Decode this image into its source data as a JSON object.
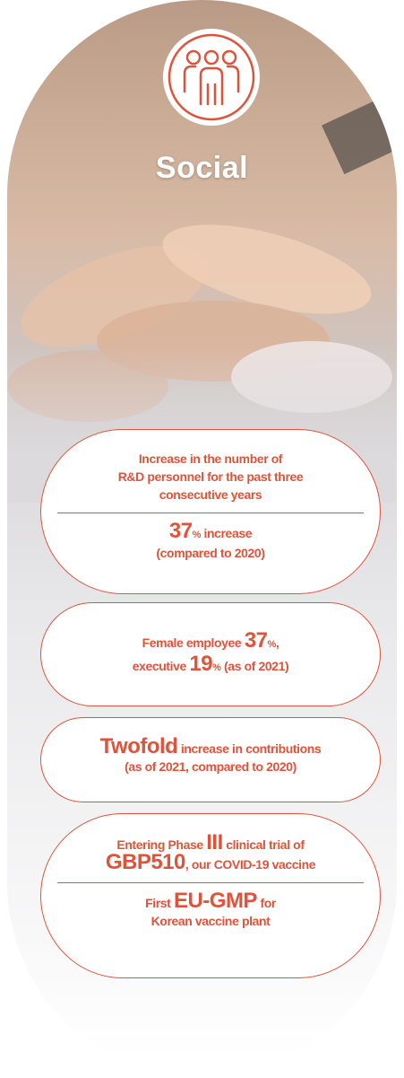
{
  "header": {
    "title": "Social"
  },
  "cards": [
    {
      "heading": [
        "Increase in the number of",
        "R&D personnel for the past three",
        "consecutive years"
      ],
      "figure": {
        "value": "37",
        "unit": "%",
        "text": "increase",
        "note": "(compared to 2020)"
      }
    },
    {
      "line1": {
        "text": "Female employee",
        "value": "37",
        "unit": "%",
        "tail": ","
      },
      "line2": {
        "text": "executive",
        "value": "19",
        "unit": "%",
        "tail": "(as of 2021)"
      }
    },
    {
      "line1": {
        "value": "Twofold",
        "text": "increase in contributions"
      },
      "line2": "(as of 2021, compared to 2020)"
    },
    {
      "line1": {
        "text": "Entering Phase",
        "value": "III",
        "tail": "clinical trial of"
      },
      "line2": {
        "value": "GBP510",
        "text": ", our COVID-19 vaccine"
      },
      "line3": {
        "text": "First",
        "value": "EU-GMP",
        "tail": "for"
      },
      "line4": "Korean vaccine plant"
    }
  ]
}
